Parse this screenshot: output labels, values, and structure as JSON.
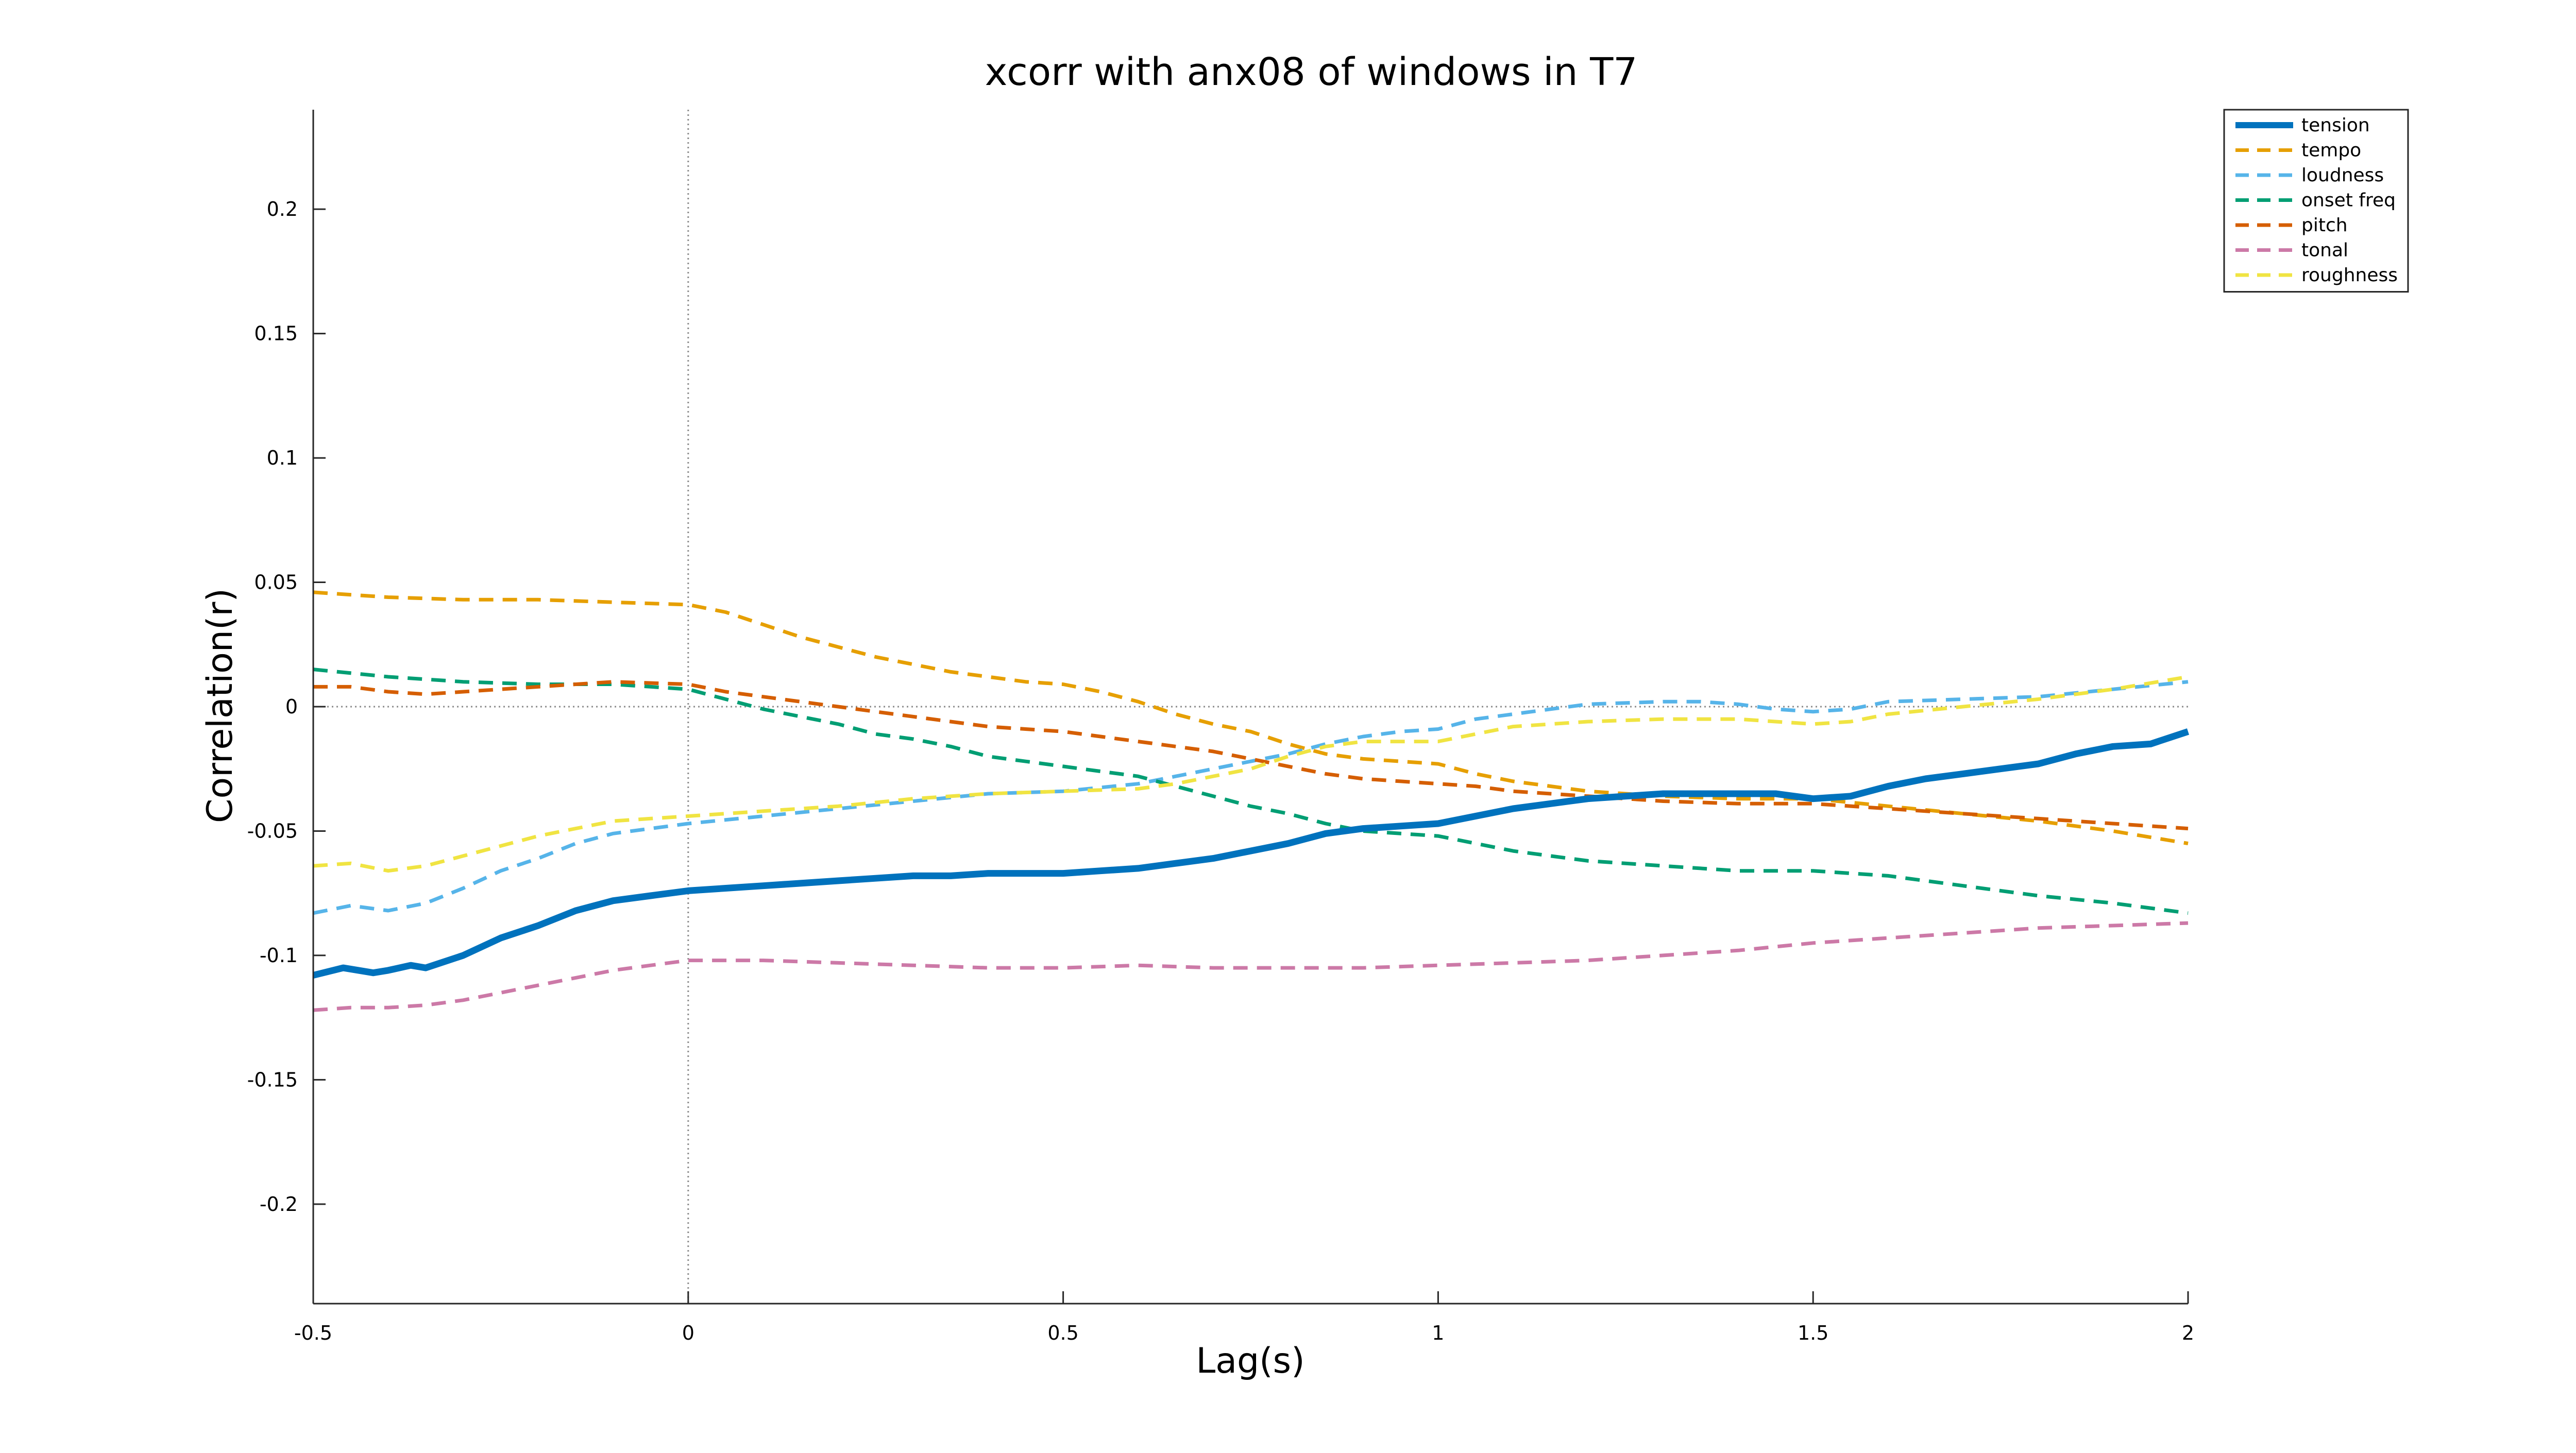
{
  "chart_data": {
    "type": "line",
    "title": "xcorr with anx08 of windows in T7",
    "xlabel": "Lag(s)",
    "ylabel": "Correlation(r)",
    "xlim": [
      -0.5,
      2
    ],
    "ylim": [
      -0.24,
      0.24
    ],
    "xticks": [
      -0.5,
      0,
      0.5,
      1,
      1.5,
      2
    ],
    "xtick_labels": [
      "-0.5",
      "0",
      "0.5",
      "1",
      "1.5",
      "2"
    ],
    "yticks": [
      0.2,
      0.15,
      0.1,
      0.05,
      0,
      -0.05,
      -0.1,
      -0.15,
      -0.2
    ],
    "ytick_labels": [
      "0.2",
      "0.15",
      "0.1",
      "0.05",
      "0",
      "-0.05",
      "-0.1",
      "-0.15",
      "-0.2"
    ],
    "grid": false,
    "reference_lines": {
      "x": 0,
      "y": 0,
      "style": "dotted",
      "color": "#8c8c8c"
    },
    "legend_position": "top-right",
    "series": [
      {
        "name": "tension",
        "color": "#0072BD",
        "style": "solid",
        "points": [
          [
            -0.5,
            -0.108
          ],
          [
            -0.46,
            -0.105
          ],
          [
            -0.42,
            -0.107
          ],
          [
            -0.4,
            -0.106
          ],
          [
            -0.37,
            -0.104
          ],
          [
            -0.35,
            -0.105
          ],
          [
            -0.3,
            -0.1
          ],
          [
            -0.25,
            -0.093
          ],
          [
            -0.2,
            -0.088
          ],
          [
            -0.15,
            -0.082
          ],
          [
            -0.1,
            -0.078
          ],
          [
            -0.05,
            -0.076
          ],
          [
            0,
            -0.074
          ],
          [
            0.05,
            -0.073
          ],
          [
            0.1,
            -0.072
          ],
          [
            0.15,
            -0.071
          ],
          [
            0.2,
            -0.07
          ],
          [
            0.25,
            -0.069
          ],
          [
            0.3,
            -0.068
          ],
          [
            0.35,
            -0.068
          ],
          [
            0.4,
            -0.067
          ],
          [
            0.45,
            -0.067
          ],
          [
            0.5,
            -0.067
          ],
          [
            0.55,
            -0.066
          ],
          [
            0.6,
            -0.065
          ],
          [
            0.65,
            -0.063
          ],
          [
            0.7,
            -0.061
          ],
          [
            0.75,
            -0.058
          ],
          [
            0.8,
            -0.055
          ],
          [
            0.85,
            -0.051
          ],
          [
            0.9,
            -0.049
          ],
          [
            0.95,
            -0.048
          ],
          [
            1.0,
            -0.047
          ],
          [
            1.05,
            -0.044
          ],
          [
            1.1,
            -0.041
          ],
          [
            1.15,
            -0.039
          ],
          [
            1.2,
            -0.037
          ],
          [
            1.25,
            -0.036
          ],
          [
            1.3,
            -0.035
          ],
          [
            1.35,
            -0.035
          ],
          [
            1.4,
            -0.035
          ],
          [
            1.45,
            -0.035
          ],
          [
            1.5,
            -0.037
          ],
          [
            1.55,
            -0.036
          ],
          [
            1.6,
            -0.032
          ],
          [
            1.65,
            -0.029
          ],
          [
            1.7,
            -0.027
          ],
          [
            1.75,
            -0.025
          ],
          [
            1.8,
            -0.023
          ],
          [
            1.85,
            -0.019
          ],
          [
            1.9,
            -0.016
          ],
          [
            1.95,
            -0.015
          ],
          [
            2.0,
            -0.01
          ]
        ]
      },
      {
        "name": "tempo",
        "color": "#E69F00",
        "style": "dashed",
        "points": [
          [
            -0.5,
            0.046
          ],
          [
            -0.4,
            0.044
          ],
          [
            -0.3,
            0.043
          ],
          [
            -0.2,
            0.043
          ],
          [
            -0.1,
            0.042
          ],
          [
            0,
            0.041
          ],
          [
            0.05,
            0.038
          ],
          [
            0.1,
            0.033
          ],
          [
            0.15,
            0.028
          ],
          [
            0.2,
            0.024
          ],
          [
            0.25,
            0.02
          ],
          [
            0.3,
            0.017
          ],
          [
            0.35,
            0.014
          ],
          [
            0.4,
            0.012
          ],
          [
            0.45,
            0.01
          ],
          [
            0.5,
            0.009
          ],
          [
            0.55,
            0.006
          ],
          [
            0.6,
            0.002
          ],
          [
            0.65,
            -0.003
          ],
          [
            0.7,
            -0.007
          ],
          [
            0.75,
            -0.01
          ],
          [
            0.8,
            -0.015
          ],
          [
            0.85,
            -0.019
          ],
          [
            0.9,
            -0.021
          ],
          [
            0.95,
            -0.022
          ],
          [
            1.0,
            -0.023
          ],
          [
            1.05,
            -0.027
          ],
          [
            1.1,
            -0.03
          ],
          [
            1.15,
            -0.032
          ],
          [
            1.2,
            -0.034
          ],
          [
            1.3,
            -0.036
          ],
          [
            1.4,
            -0.037
          ],
          [
            1.5,
            -0.037
          ],
          [
            1.6,
            -0.04
          ],
          [
            1.7,
            -0.043
          ],
          [
            1.8,
            -0.046
          ],
          [
            1.9,
            -0.05
          ],
          [
            2.0,
            -0.055
          ]
        ]
      },
      {
        "name": "loudness",
        "color": "#56B4E9",
        "style": "dashed",
        "points": [
          [
            -0.5,
            -0.083
          ],
          [
            -0.45,
            -0.08
          ],
          [
            -0.4,
            -0.082
          ],
          [
            -0.35,
            -0.079
          ],
          [
            -0.3,
            -0.073
          ],
          [
            -0.25,
            -0.066
          ],
          [
            -0.2,
            -0.061
          ],
          [
            -0.15,
            -0.055
          ],
          [
            -0.1,
            -0.051
          ],
          [
            -0.05,
            -0.049
          ],
          [
            0,
            -0.047
          ],
          [
            0.1,
            -0.044
          ],
          [
            0.2,
            -0.041
          ],
          [
            0.3,
            -0.038
          ],
          [
            0.4,
            -0.035
          ],
          [
            0.5,
            -0.034
          ],
          [
            0.6,
            -0.031
          ],
          [
            0.65,
            -0.028
          ],
          [
            0.7,
            -0.025
          ],
          [
            0.75,
            -0.022
          ],
          [
            0.8,
            -0.019
          ],
          [
            0.85,
            -0.015
          ],
          [
            0.9,
            -0.012
          ],
          [
            0.95,
            -0.01
          ],
          [
            1.0,
            -0.009
          ],
          [
            1.05,
            -0.005
          ],
          [
            1.1,
            -0.003
          ],
          [
            1.15,
            -0.001
          ],
          [
            1.2,
            0.001
          ],
          [
            1.3,
            0.002
          ],
          [
            1.35,
            0.002
          ],
          [
            1.4,
            0.001
          ],
          [
            1.45,
            -0.001
          ],
          [
            1.5,
            -0.002
          ],
          [
            1.55,
            -0.001
          ],
          [
            1.6,
            0.002
          ],
          [
            1.7,
            0.003
          ],
          [
            1.8,
            0.004
          ],
          [
            1.9,
            0.007
          ],
          [
            2.0,
            0.01
          ]
        ]
      },
      {
        "name": "onset freq",
        "color": "#009E73",
        "style": "dashed",
        "points": [
          [
            -0.5,
            0.015
          ],
          [
            -0.4,
            0.012
          ],
          [
            -0.3,
            0.01
          ],
          [
            -0.2,
            0.009
          ],
          [
            -0.1,
            0.009
          ],
          [
            0,
            0.007
          ],
          [
            0.05,
            0.003
          ],
          [
            0.1,
            -0.001
          ],
          [
            0.15,
            -0.004
          ],
          [
            0.2,
            -0.007
          ],
          [
            0.25,
            -0.011
          ],
          [
            0.3,
            -0.013
          ],
          [
            0.35,
            -0.016
          ],
          [
            0.4,
            -0.02
          ],
          [
            0.45,
            -0.022
          ],
          [
            0.5,
            -0.024
          ],
          [
            0.55,
            -0.026
          ],
          [
            0.6,
            -0.028
          ],
          [
            0.65,
            -0.032
          ],
          [
            0.7,
            -0.036
          ],
          [
            0.75,
            -0.04
          ],
          [
            0.8,
            -0.043
          ],
          [
            0.85,
            -0.047
          ],
          [
            0.9,
            -0.05
          ],
          [
            0.95,
            -0.051
          ],
          [
            1.0,
            -0.052
          ],
          [
            1.05,
            -0.055
          ],
          [
            1.1,
            -0.058
          ],
          [
            1.15,
            -0.06
          ],
          [
            1.2,
            -0.062
          ],
          [
            1.3,
            -0.064
          ],
          [
            1.4,
            -0.066
          ],
          [
            1.5,
            -0.066
          ],
          [
            1.6,
            -0.068
          ],
          [
            1.7,
            -0.072
          ],
          [
            1.8,
            -0.076
          ],
          [
            1.9,
            -0.079
          ],
          [
            2.0,
            -0.083
          ]
        ]
      },
      {
        "name": "pitch",
        "color": "#D55E00",
        "style": "dashed",
        "points": [
          [
            -0.5,
            0.008
          ],
          [
            -0.45,
            0.008
          ],
          [
            -0.4,
            0.006
          ],
          [
            -0.35,
            0.005
          ],
          [
            -0.3,
            0.006
          ],
          [
            -0.25,
            0.007
          ],
          [
            -0.2,
            0.008
          ],
          [
            -0.15,
            0.009
          ],
          [
            -0.1,
            0.01
          ],
          [
            0,
            0.009
          ],
          [
            0.05,
            0.006
          ],
          [
            0.1,
            0.004
          ],
          [
            0.15,
            0.002
          ],
          [
            0.2,
            0.0
          ],
          [
            0.25,
            -0.002
          ],
          [
            0.3,
            -0.004
          ],
          [
            0.35,
            -0.006
          ],
          [
            0.4,
            -0.008
          ],
          [
            0.45,
            -0.009
          ],
          [
            0.5,
            -0.01
          ],
          [
            0.55,
            -0.012
          ],
          [
            0.6,
            -0.014
          ],
          [
            0.65,
            -0.016
          ],
          [
            0.7,
            -0.018
          ],
          [
            0.75,
            -0.021
          ],
          [
            0.8,
            -0.024
          ],
          [
            0.85,
            -0.027
          ],
          [
            0.9,
            -0.029
          ],
          [
            0.95,
            -0.03
          ],
          [
            1.0,
            -0.031
          ],
          [
            1.05,
            -0.032
          ],
          [
            1.1,
            -0.034
          ],
          [
            1.2,
            -0.036
          ],
          [
            1.3,
            -0.038
          ],
          [
            1.4,
            -0.039
          ],
          [
            1.5,
            -0.039
          ],
          [
            1.6,
            -0.041
          ],
          [
            1.7,
            -0.043
          ],
          [
            1.8,
            -0.045
          ],
          [
            1.9,
            -0.047
          ],
          [
            2.0,
            -0.049
          ]
        ]
      },
      {
        "name": "tonal",
        "color": "#CC79A7",
        "style": "dashed",
        "points": [
          [
            -0.5,
            -0.122
          ],
          [
            -0.45,
            -0.121
          ],
          [
            -0.4,
            -0.121
          ],
          [
            -0.35,
            -0.12
          ],
          [
            -0.3,
            -0.118
          ],
          [
            -0.25,
            -0.115
          ],
          [
            -0.2,
            -0.112
          ],
          [
            -0.15,
            -0.109
          ],
          [
            -0.1,
            -0.106
          ],
          [
            -0.05,
            -0.104
          ],
          [
            0,
            -0.102
          ],
          [
            0.1,
            -0.102
          ],
          [
            0.2,
            -0.103
          ],
          [
            0.3,
            -0.104
          ],
          [
            0.4,
            -0.105
          ],
          [
            0.5,
            -0.105
          ],
          [
            0.6,
            -0.104
          ],
          [
            0.7,
            -0.105
          ],
          [
            0.8,
            -0.105
          ],
          [
            0.9,
            -0.105
          ],
          [
            1.0,
            -0.104
          ],
          [
            1.1,
            -0.103
          ],
          [
            1.2,
            -0.102
          ],
          [
            1.3,
            -0.1
          ],
          [
            1.4,
            -0.098
          ],
          [
            1.5,
            -0.095
          ],
          [
            1.6,
            -0.093
          ],
          [
            1.7,
            -0.091
          ],
          [
            1.8,
            -0.089
          ],
          [
            1.9,
            -0.088
          ],
          [
            2.0,
            -0.087
          ]
        ]
      },
      {
        "name": "roughness",
        "color": "#F0E442",
        "style": "dashed",
        "points": [
          [
            -0.5,
            -0.064
          ],
          [
            -0.45,
            -0.063
          ],
          [
            -0.4,
            -0.066
          ],
          [
            -0.35,
            -0.064
          ],
          [
            -0.3,
            -0.06
          ],
          [
            -0.25,
            -0.056
          ],
          [
            -0.2,
            -0.052
          ],
          [
            -0.15,
            -0.049
          ],
          [
            -0.1,
            -0.046
          ],
          [
            -0.05,
            -0.045
          ],
          [
            0,
            -0.044
          ],
          [
            0.1,
            -0.042
          ],
          [
            0.2,
            -0.04
          ],
          [
            0.3,
            -0.037
          ],
          [
            0.4,
            -0.035
          ],
          [
            0.5,
            -0.034
          ],
          [
            0.6,
            -0.033
          ],
          [
            0.65,
            -0.031
          ],
          [
            0.7,
            -0.028
          ],
          [
            0.75,
            -0.025
          ],
          [
            0.8,
            -0.02
          ],
          [
            0.85,
            -0.016
          ],
          [
            0.9,
            -0.014
          ],
          [
            0.95,
            -0.014
          ],
          [
            1.0,
            -0.014
          ],
          [
            1.05,
            -0.011
          ],
          [
            1.1,
            -0.008
          ],
          [
            1.15,
            -0.007
          ],
          [
            1.2,
            -0.006
          ],
          [
            1.3,
            -0.005
          ],
          [
            1.4,
            -0.005
          ],
          [
            1.45,
            -0.006
          ],
          [
            1.5,
            -0.007
          ],
          [
            1.55,
            -0.006
          ],
          [
            1.6,
            -0.003
          ],
          [
            1.7,
            0.0
          ],
          [
            1.8,
            0.003
          ],
          [
            1.9,
            0.007
          ],
          [
            2.0,
            0.012
          ]
        ]
      }
    ]
  }
}
